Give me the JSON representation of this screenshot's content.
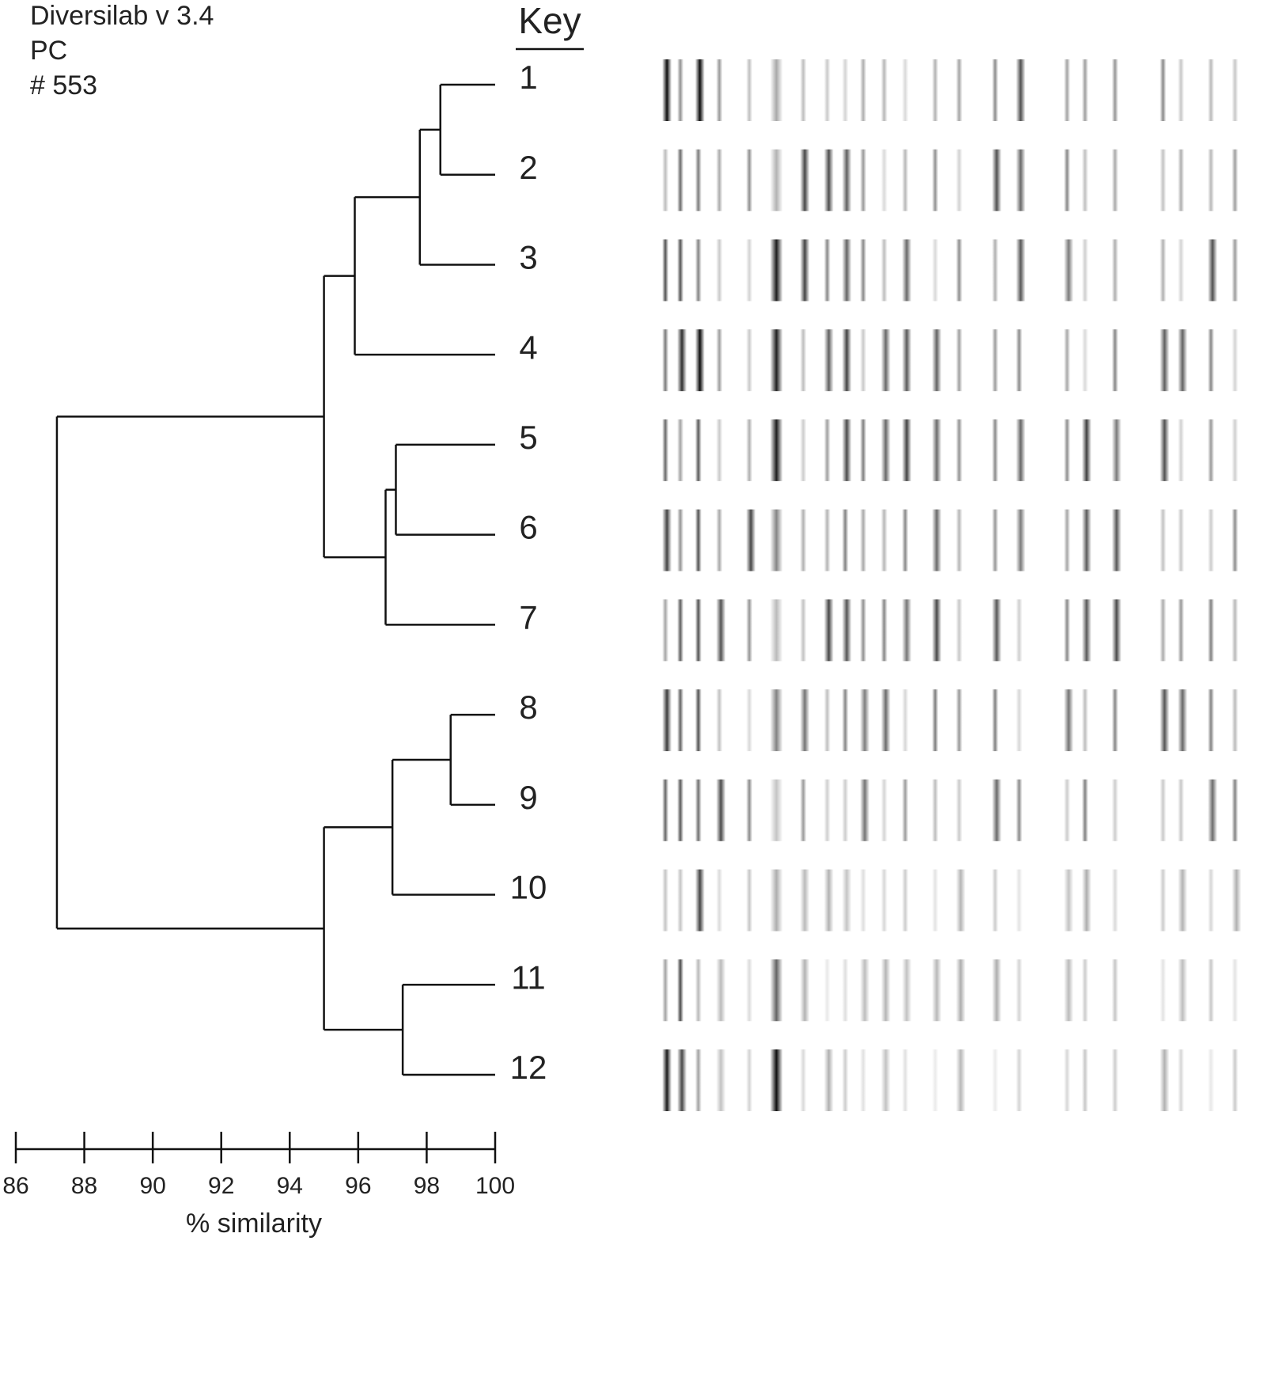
{
  "header": {
    "lines": [
      "Diversilab v 3.4",
      "PC",
      "# 553"
    ]
  },
  "key_title": "Key",
  "chart_data": {
    "type": "dendrogram",
    "leaves": [
      "1",
      "2",
      "3",
      "4",
      "5",
      "6",
      "7",
      "8",
      "9",
      "10",
      "11",
      "12"
    ],
    "merges": [
      {
        "children": [
          0,
          1
        ],
        "similarity": 98.4
      },
      {
        "children": [
          12,
          2
        ],
        "similarity": 97.8
      },
      {
        "children": [
          13,
          3
        ],
        "similarity": 95.9
      },
      {
        "children": [
          4,
          5
        ],
        "similarity": 97.1
      },
      {
        "children": [
          15,
          6
        ],
        "similarity": 96.8
      },
      {
        "children": [
          14,
          16
        ],
        "similarity": 95.0
      },
      {
        "children": [
          7,
          8
        ],
        "similarity": 98.7
      },
      {
        "children": [
          18,
          9
        ],
        "similarity": 97.0
      },
      {
        "children": [
          10,
          11
        ],
        "similarity": 97.3
      },
      {
        "children": [
          19,
          20
        ],
        "similarity": 95.0
      },
      {
        "children": [
          17,
          21
        ],
        "similarity": 87.2
      }
    ],
    "xlim": [
      86,
      100
    ],
    "xticks": [
      86,
      88,
      90,
      92,
      94,
      96,
      98,
      100
    ],
    "xlabel": "% similarity"
  }
}
